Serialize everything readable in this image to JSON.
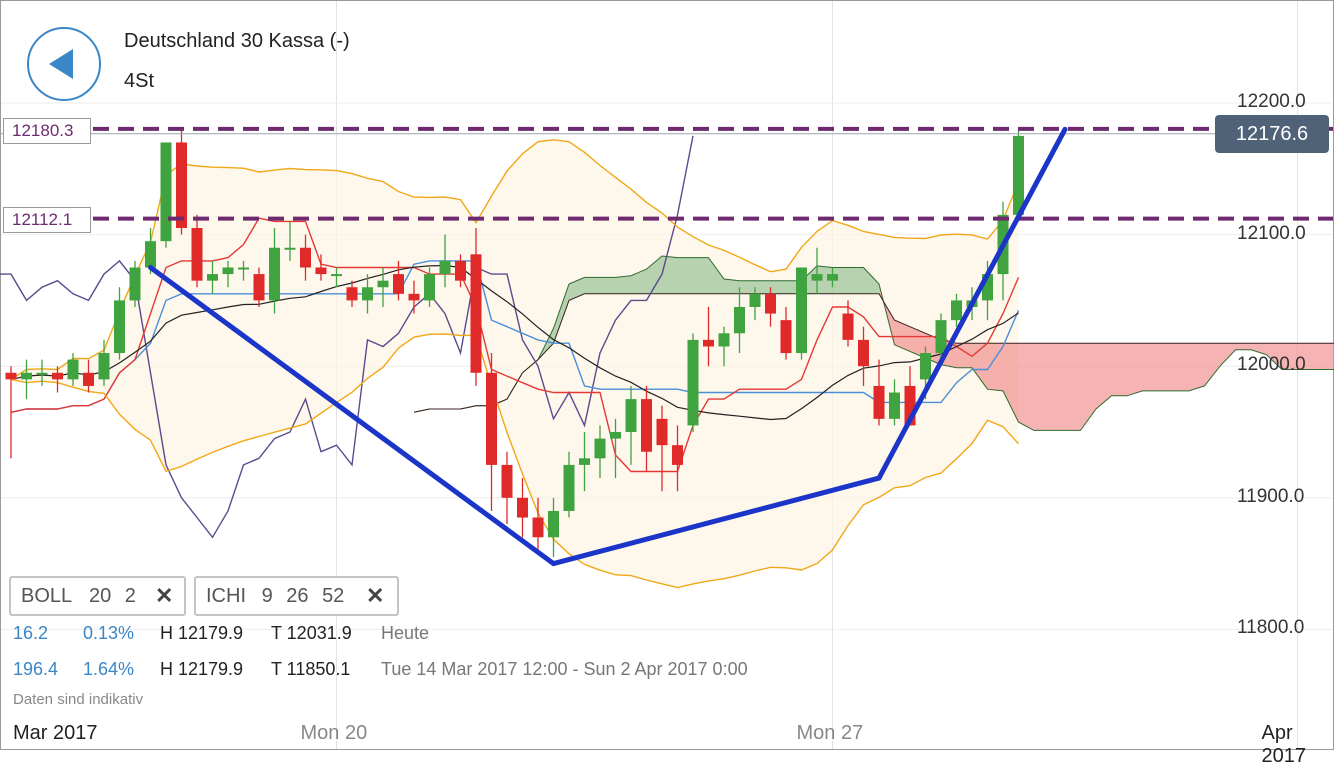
{
  "header": {
    "title": "Deutschland 30 Kassa (-)",
    "timeframe": "4St"
  },
  "price_tags": {
    "current_price": "12176.6"
  },
  "levels": [
    {
      "label": "12180.3",
      "value": 12180.3
    },
    {
      "label": "12112.1",
      "value": 12112.1
    }
  ],
  "indicators": {
    "boll": {
      "name": "BOLL",
      "p1": "20",
      "p2": "2"
    },
    "ichi": {
      "name": "ICHI",
      "p1": "9",
      "p2": "26",
      "p3": "52"
    },
    "close_symbol": "✕"
  },
  "stats": {
    "row1": {
      "change": "16.2",
      "percent": "0.13%",
      "high": "H 12179.9",
      "low": "T 12031.9",
      "period": "Heute"
    },
    "row2": {
      "change": "196.4",
      "percent": "1.64%",
      "high": "H 12179.9",
      "low": "T 11850.1",
      "period": "Tue 14 Mar 2017 12:00 - Sun 2 Apr 2017 0:00"
    }
  },
  "disclaimer": "Daten sind indikativ",
  "colors": {
    "up": "#3fa33f",
    "down": "#e02a2a",
    "boll": "#f0a818",
    "tenkan": "#e53935",
    "kijun": "#4a90d9",
    "chikou": "#5b4a8c",
    "cloud_bull": "#8fbf8f",
    "cloud_bear": "#f08a8a",
    "trend": "#1a35c8",
    "level": "#6e2a6e",
    "accent": "#3a86c8"
  },
  "chart_data": {
    "type": "candlestick",
    "title": "Deutschland 30 Kassa (-)",
    "interval": "4St",
    "ylim": [
      11735,
      12290
    ],
    "y_ticks": [
      "12200.0",
      "12100.0",
      "12000.0",
      "11900.0",
      "11800.0"
    ],
    "y_tick_values": [
      12200,
      12100,
      12000,
      11900,
      11800
    ],
    "x_ticks": [
      "Mar 2017",
      "Mon 20",
      "Mon 27",
      "Apr 2017"
    ],
    "x_tick_index": [
      -1,
      21,
      53,
      83
    ],
    "candles": [
      [
        11995,
        12000,
        11930,
        11990
      ],
      [
        11990,
        12005,
        11975,
        11995
      ],
      [
        11995,
        12005,
        11985,
        11995
      ],
      [
        11995,
        12000,
        11980,
        11990
      ],
      [
        11990,
        12010,
        11985,
        12005
      ],
      [
        11995,
        12005,
        11980,
        11985
      ],
      [
        11990,
        12020,
        11985,
        12010
      ],
      [
        12010,
        12060,
        12005,
        12050
      ],
      [
        12050,
        12080,
        12045,
        12075
      ],
      [
        12075,
        12105,
        12070,
        12095
      ],
      [
        12095,
        12170,
        12090,
        12170
      ],
      [
        12170,
        12180,
        12100,
        12105
      ],
      [
        12105,
        12115,
        12060,
        12065
      ],
      [
        12065,
        12080,
        12055,
        12070
      ],
      [
        12070,
        12080,
        12060,
        12075
      ],
      [
        12075,
        12080,
        12065,
        12075
      ],
      [
        12070,
        12075,
        12045,
        12050
      ],
      [
        12050,
        12105,
        12040,
        12090
      ],
      [
        12090,
        12110,
        12080,
        12090
      ],
      [
        12090,
        12100,
        12065,
        12075
      ],
      [
        12075,
        12085,
        12065,
        12070
      ],
      [
        12070,
        12075,
        12060,
        12070
      ],
      [
        12060,
        12065,
        12045,
        12050
      ],
      [
        12050,
        12070,
        12040,
        12060
      ],
      [
        12060,
        12075,
        12045,
        12065
      ],
      [
        12070,
        12080,
        12050,
        12055
      ],
      [
        12055,
        12065,
        12040,
        12050
      ],
      [
        12050,
        12075,
        12045,
        12070
      ],
      [
        12070,
        12100,
        12060,
        12080
      ],
      [
        12080,
        12085,
        12060,
        12065
      ],
      [
        12085,
        12105,
        11985,
        11995
      ],
      [
        11995,
        12010,
        11890,
        11925
      ],
      [
        11925,
        11935,
        11880,
        11900
      ],
      [
        11900,
        11915,
        11870,
        11885
      ],
      [
        11885,
        11900,
        11860,
        11870
      ],
      [
        11870,
        11900,
        11855,
        11890
      ],
      [
        11890,
        11935,
        11885,
        11925
      ],
      [
        11925,
        11950,
        11905,
        11930
      ],
      [
        11930,
        11955,
        11915,
        11945
      ],
      [
        11945,
        11960,
        11915,
        11950
      ],
      [
        11950,
        11985,
        11925,
        11975
      ],
      [
        11975,
        11985,
        11920,
        11935
      ],
      [
        11960,
        11970,
        11905,
        11940
      ],
      [
        11940,
        11955,
        11905,
        11925
      ],
      [
        11955,
        12025,
        11950,
        12020
      ],
      [
        12020,
        12045,
        12000,
        12015
      ],
      [
        12015,
        12030,
        12000,
        12025
      ],
      [
        12025,
        12060,
        12010,
        12045
      ],
      [
        12045,
        12060,
        12035,
        12055
      ],
      [
        12055,
        12060,
        12030,
        12040
      ],
      [
        12035,
        12045,
        12005,
        12010
      ],
      [
        12010,
        12075,
        12005,
        12075
      ],
      [
        12065,
        12090,
        12055,
        12070
      ],
      [
        12065,
        12075,
        12060,
        12070
      ],
      [
        12040,
        12050,
        12015,
        12020
      ],
      [
        12020,
        12030,
        11985,
        12000
      ],
      [
        11985,
        12005,
        11955,
        11960
      ],
      [
        11960,
        11990,
        11955,
        11980
      ],
      [
        11985,
        12000,
        11955,
        11955
      ],
      [
        11990,
        12015,
        11975,
        12010
      ],
      [
        12010,
        12040,
        12000,
        12035
      ],
      [
        12035,
        12055,
        12030,
        12050
      ],
      [
        12045,
        12060,
        12035,
        12050
      ],
      [
        12050,
        12080,
        12035,
        12070
      ],
      [
        12070,
        12125,
        12050,
        12115
      ],
      [
        12115,
        12180,
        12110,
        12175
      ]
    ],
    "bollinger": {
      "upper_approx": [
        12000,
        12090,
        12130,
        12160,
        12160,
        12150,
        12120,
        12110,
        12130,
        12180,
        12175,
        12120,
        12105,
        12105,
        12115,
        12115,
        12100,
        12112
      ],
      "lower_approx": [
        11980,
        11950,
        11935,
        11935,
        11960,
        11985,
        11950,
        11860,
        11835,
        11830,
        11835,
        11845,
        11890,
        11925,
        11950,
        11935
      ]
    },
    "levels": [
      12180.3,
      12112.1
    ],
    "current_price": 12176.6,
    "trendlines": [
      {
        "from": [
          9,
          12075
        ],
        "to": [
          35,
          11850
        ]
      },
      {
        "from": [
          35,
          11850
        ],
        "to": [
          56,
          11915
        ]
      },
      {
        "from": [
          56,
          11915
        ],
        "to": [
          68,
          12180
        ]
      }
    ]
  }
}
